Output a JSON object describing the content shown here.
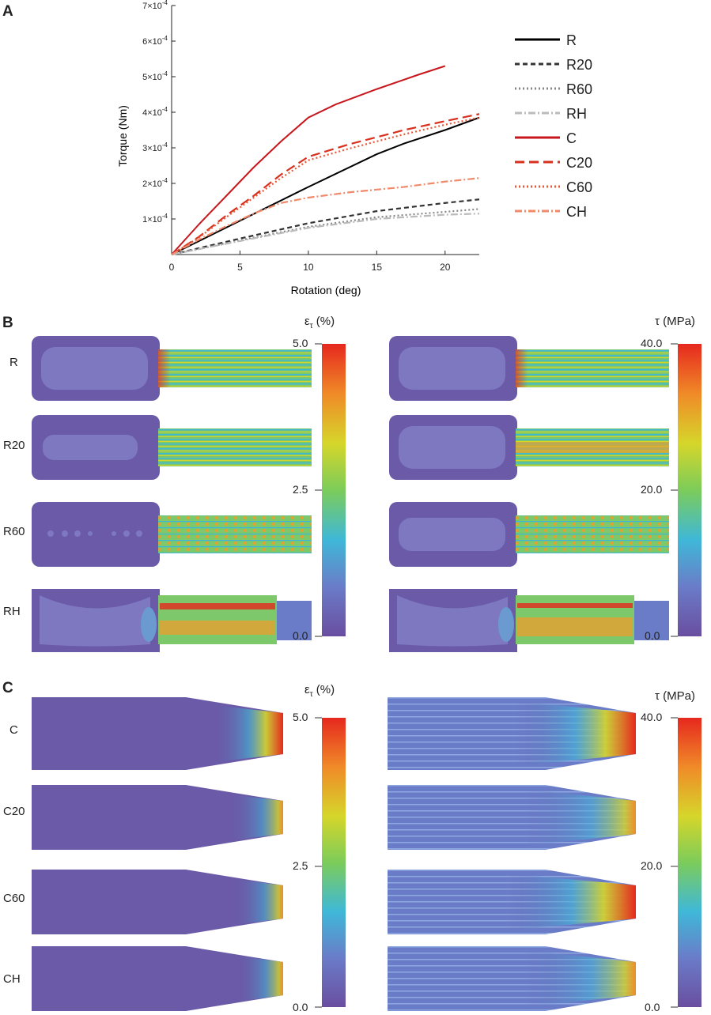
{
  "panels": {
    "a": "A",
    "b": "B",
    "c": "C"
  },
  "chart_data": {
    "type": "line",
    "title": "",
    "xlabel": "Rotation (deg)",
    "ylabel": "Torque (Nm)",
    "xlim": [
      0,
      22.5
    ],
    "ylim": [
      0,
      0.0007
    ],
    "x_ticks": [
      0,
      5,
      10,
      15,
      20
    ],
    "y_ticks": [
      {
        "value": 0.0001,
        "base": "1×10",
        "exp": "-4"
      },
      {
        "value": 0.0002,
        "base": "2×10",
        "exp": "-4"
      },
      {
        "value": 0.0003,
        "base": "3×10",
        "exp": "-4"
      },
      {
        "value": 0.0004,
        "base": "4×10",
        "exp": "-4"
      },
      {
        "value": 0.0005,
        "base": "5×10",
        "exp": "-4"
      },
      {
        "value": 0.0006,
        "base": "6×10",
        "exp": "-4"
      },
      {
        "value": 0.0007,
        "base": "7×10",
        "exp": "-4"
      }
    ],
    "legend_position": "right",
    "series": [
      {
        "name": "R",
        "color": "#000000",
        "style": "solid",
        "x": [
          0,
          5,
          10,
          15,
          17,
          20,
          22.5
        ],
        "y": [
          0,
          9.5e-05,
          0.00019,
          0.000282,
          0.000312,
          0.00035,
          0.000385
        ]
      },
      {
        "name": "R20",
        "color": "#333333",
        "style": "dash",
        "x": [
          0,
          5,
          10,
          15,
          20,
          22.5
        ],
        "y": [
          0,
          4.5e-05,
          8.8e-05,
          0.000122,
          0.000145,
          0.000155
        ]
      },
      {
        "name": "R60",
        "color": "#888888",
        "style": "dot",
        "x": [
          0,
          5,
          10,
          15,
          20,
          22.5
        ],
        "y": [
          0,
          4e-05,
          7.8e-05,
          0.000105,
          0.00012,
          0.000128
        ]
      },
      {
        "name": "RH",
        "color": "#bbbbbb",
        "style": "dashdot",
        "x": [
          0,
          5,
          10,
          15,
          20,
          22.5
        ],
        "y": [
          0,
          3.8e-05,
          7.5e-05,
          0.0001,
          0.000112,
          0.000115
        ]
      },
      {
        "name": "C",
        "color": "#c8161d",
        "style": "solid",
        "x": [
          0,
          2,
          4,
          6,
          8,
          10,
          12,
          15,
          18,
          20
        ],
        "y": [
          0,
          8.5e-05,
          0.000165,
          0.000245,
          0.000318,
          0.000385,
          0.000422,
          0.000465,
          0.000505,
          0.00053
        ]
      },
      {
        "name": "C20",
        "color": "#d9301e",
        "style": "longdash",
        "x": [
          0,
          2,
          4,
          6,
          8,
          10,
          13,
          17,
          20,
          22.5
        ],
        "y": [
          0,
          5e-05,
          0.00011,
          0.000165,
          0.000225,
          0.000275,
          0.00031,
          0.00035,
          0.000375,
          0.000395
        ]
      },
      {
        "name": "C60",
        "color": "#e8593a",
        "style": "dot",
        "x": [
          0,
          2,
          4,
          6,
          8,
          10,
          13,
          17,
          20,
          22.5
        ],
        "y": [
          0,
          4.8e-05,
          0.000105,
          0.00016,
          0.000215,
          0.000265,
          0.000298,
          0.000338,
          0.000365,
          0.000385
        ]
      },
      {
        "name": "CH",
        "color": "#f08a6a",
        "style": "dashdot",
        "x": [
          0,
          2,
          4,
          6,
          8,
          10,
          13,
          17,
          20,
          22.5
        ],
        "y": [
          0,
          4.2e-05,
          8e-05,
          0.000115,
          0.000145,
          0.00016,
          0.000175,
          0.00019,
          0.000205,
          0.000215
        ]
      }
    ]
  },
  "panel_b": {
    "rows": [
      "R",
      "R20",
      "R60",
      "RH"
    ],
    "strain_bar": {
      "title": "ε",
      "sub": "τ",
      "unit": " (%)",
      "ticks": [
        "5.0",
        "2.5",
        "0.0"
      ]
    },
    "stress_bar": {
      "title": "τ (MPa)",
      "ticks": [
        "40.0",
        "20.0",
        "0.0"
      ]
    }
  },
  "panel_c": {
    "rows": [
      "C",
      "C20",
      "C60",
      "CH"
    ],
    "strain_bar": {
      "title": "ε",
      "sub": "τ",
      "unit": " (%)",
      "ticks": [
        "5.0",
        "2.5",
        "0.0"
      ]
    },
    "stress_bar": {
      "title": "τ (MPa)",
      "ticks": [
        "40.0",
        "20.0",
        "0.0"
      ]
    }
  },
  "colors": {
    "base_purple": "#6a5aa8",
    "light_purple": "#7d78c0",
    "colormap": [
      "#6a4ea0",
      "#6a7cc8",
      "#3fb8d8",
      "#7ccc5a",
      "#d6d62a",
      "#f08a28",
      "#e6281e"
    ]
  }
}
